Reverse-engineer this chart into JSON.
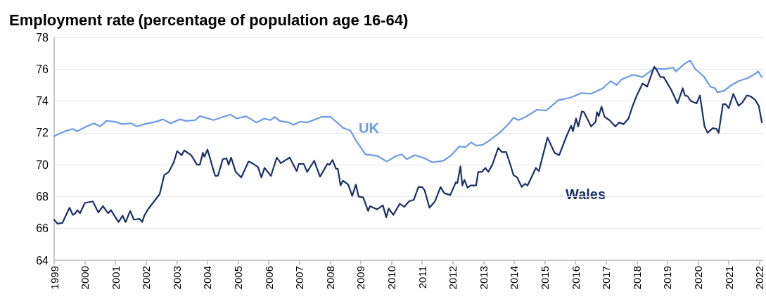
{
  "chart_data": {
    "type": "line",
    "title": "Employment rate",
    "subtitle": "(percentage of population age 16-64)",
    "xlim": [
      1999,
      2022.1
    ],
    "xticks": [
      1999,
      2000,
      2001,
      2002,
      2003,
      2004,
      2005,
      2006,
      2007,
      2008,
      2009,
      2010,
      2011,
      2012,
      2013,
      2014,
      2015,
      2016,
      2017,
      2018,
      2019,
      2020,
      2021,
      2022
    ],
    "ylim": [
      64,
      78
    ],
    "yticks": [
      64,
      66,
      68,
      70,
      72,
      74,
      76,
      78
    ],
    "grid": "y",
    "legend": false,
    "marker": "none",
    "line_style": "solid",
    "series": [
      {
        "name": "UK",
        "color": "#6a9be8",
        "x": [
          1999.0,
          1999.35,
          1999.6,
          1999.75,
          2000.05,
          2000.3,
          2000.5,
          2000.7,
          2001.0,
          2001.2,
          2001.5,
          2001.7,
          2001.95,
          2002.2,
          2002.4,
          2002.55,
          2002.8,
          2003.1,
          2003.3,
          2003.6,
          2003.75,
          2004.2,
          2004.5,
          2004.75,
          2004.95,
          2005.25,
          2005.6,
          2005.85,
          2006.05,
          2006.2,
          2006.35,
          2006.65,
          2006.8,
          2007.02,
          2007.25,
          2007.72,
          2008.02,
          2008.43,
          2008.66,
          2008.85,
          2009.15,
          2009.54,
          2009.85,
          2010.15,
          2010.34,
          2010.5,
          2010.77,
          2011.08,
          2011.34,
          2011.69,
          2011.92,
          2012.22,
          2012.41,
          2012.6,
          2012.76,
          2012.98,
          2013.21,
          2013.52,
          2013.79,
          2013.98,
          2014.14,
          2014.37,
          2014.75,
          2015.05,
          2015.44,
          2015.82,
          2016.2,
          2016.51,
          2016.89,
          2017.15,
          2017.34,
          2017.5,
          2017.88,
          2018.19,
          2018.57,
          2018.88,
          2019.19,
          2019.27,
          2019.57,
          2019.74,
          2019.91,
          2020.18,
          2020.4,
          2020.56,
          2020.63,
          2020.86,
          2021.05,
          2021.32,
          2021.63,
          2021.81,
          2021.96,
          2022.08
        ],
        "values": [
          71.8,
          72.1,
          72.25,
          72.1,
          72.4,
          72.6,
          72.4,
          72.75,
          72.7,
          72.55,
          72.6,
          72.4,
          72.55,
          72.65,
          72.75,
          72.85,
          72.6,
          72.85,
          72.75,
          72.8,
          73.05,
          72.8,
          73.0,
          73.15,
          72.9,
          73.05,
          72.65,
          72.9,
          72.8,
          73.0,
          72.75,
          72.65,
          72.5,
          72.7,
          72.65,
          73.0,
          73.0,
          72.3,
          72.15,
          71.5,
          70.65,
          70.55,
          70.2,
          70.55,
          70.65,
          70.35,
          70.6,
          70.4,
          70.15,
          70.25,
          70.55,
          71.15,
          71.1,
          71.4,
          71.2,
          71.25,
          71.55,
          72.0,
          72.5,
          72.95,
          72.8,
          73.0,
          73.45,
          73.4,
          74.05,
          74.2,
          74.5,
          74.45,
          74.8,
          75.25,
          75.0,
          75.35,
          75.65,
          75.5,
          76.05,
          76.0,
          76.1,
          75.85,
          76.35,
          76.55,
          76.0,
          75.55,
          74.9,
          74.8,
          74.55,
          74.65,
          74.95,
          75.25,
          75.45,
          75.65,
          75.85,
          75.5
        ]
      },
      {
        "name": "Wales",
        "color": "#1a2f66",
        "x": [
          1999.0,
          1999.11,
          1999.27,
          1999.5,
          1999.61,
          1999.69,
          1999.76,
          1999.84,
          2000.0,
          2000.26,
          2000.44,
          2000.59,
          2000.76,
          2000.85,
          2001.1,
          2001.23,
          2001.33,
          2001.48,
          2001.6,
          2001.79,
          2001.87,
          2001.94,
          2002.06,
          2002.44,
          2002.59,
          2002.74,
          2002.9,
          2003.01,
          2003.16,
          2003.24,
          2003.47,
          2003.66,
          2003.75,
          2003.85,
          2003.9,
          2004.0,
          2004.25,
          2004.34,
          2004.5,
          2004.62,
          2004.69,
          2004.77,
          2004.92,
          2005.1,
          2005.34,
          2005.46,
          2005.65,
          2005.76,
          2005.86,
          2006.07,
          2006.26,
          2006.39,
          2006.68,
          2006.91,
          2006.98,
          2007.14,
          2007.25,
          2007.48,
          2007.67,
          2007.91,
          2007.98,
          2008.08,
          2008.19,
          2008.25,
          2008.34,
          2008.42,
          2008.59,
          2008.72,
          2008.84,
          2008.93,
          2009.08,
          2009.24,
          2009.3,
          2009.53,
          2009.72,
          2009.83,
          2009.91,
          2010.06,
          2010.27,
          2010.42,
          2010.57,
          2010.73,
          2010.88,
          2011.0,
          2011.08,
          2011.24,
          2011.42,
          2011.6,
          2011.73,
          2011.92,
          2012.1,
          2012.15,
          2012.25,
          2012.31,
          2012.38,
          2012.48,
          2012.58,
          2012.76,
          2012.83,
          2012.95,
          2013.06,
          2013.16,
          2013.29,
          2013.48,
          2013.6,
          2013.74,
          2013.87,
          2013.98,
          2014.1,
          2014.25,
          2014.35,
          2014.44,
          2014.71,
          2014.81,
          2014.94,
          2015.09,
          2015.32,
          2015.47,
          2015.7,
          2015.86,
          2015.92,
          2016.02,
          2016.09,
          2016.21,
          2016.28,
          2016.51,
          2016.66,
          2016.7,
          2016.76,
          2016.85,
          2016.95,
          2017.11,
          2017.3,
          2017.42,
          2017.57,
          2017.73,
          2017.85,
          2018.0,
          2018.19,
          2018.34,
          2018.57,
          2018.65,
          2018.77,
          2018.88,
          2019.11,
          2019.33,
          2019.5,
          2019.57,
          2019.66,
          2019.76,
          2019.95,
          2020.06,
          2020.21,
          2020.31,
          2020.48,
          2020.6,
          2020.67,
          2020.81,
          2020.9,
          2021.0,
          2021.15,
          2021.32,
          2021.44,
          2021.59,
          2021.7,
          2021.85,
          2021.98,
          2022.08
        ],
        "values": [
          66.55,
          66.3,
          66.35,
          67.3,
          66.85,
          66.95,
          67.15,
          66.95,
          67.6,
          67.7,
          67.0,
          67.4,
          66.95,
          67.15,
          66.4,
          66.8,
          66.4,
          67.1,
          66.55,
          66.6,
          66.4,
          66.8,
          67.2,
          68.15,
          69.35,
          69.55,
          70.15,
          70.85,
          70.6,
          70.9,
          70.6,
          70.0,
          70.0,
          70.75,
          70.5,
          70.95,
          69.3,
          69.3,
          70.35,
          70.4,
          70.0,
          70.45,
          69.55,
          69.2,
          70.2,
          70.1,
          69.85,
          69.2,
          69.8,
          69.3,
          70.45,
          70.1,
          70.45,
          69.6,
          70.05,
          70.05,
          69.55,
          70.25,
          69.25,
          70.05,
          70.0,
          70.3,
          69.75,
          69.75,
          68.7,
          69.0,
          68.75,
          68.05,
          68.75,
          68.0,
          67.95,
          67.1,
          67.4,
          67.2,
          67.45,
          66.7,
          67.25,
          66.85,
          67.55,
          67.35,
          67.7,
          67.8,
          68.6,
          68.6,
          68.4,
          67.3,
          67.7,
          68.6,
          68.2,
          68.1,
          68.9,
          68.85,
          69.9,
          68.7,
          69.05,
          68.55,
          68.7,
          68.7,
          69.55,
          69.55,
          69.8,
          69.55,
          70.0,
          71.05,
          70.8,
          70.8,
          70.05,
          69.35,
          69.2,
          68.6,
          68.8,
          68.7,
          69.8,
          69.6,
          70.6,
          71.7,
          70.75,
          70.6,
          71.75,
          72.45,
          72.1,
          72.9,
          72.4,
          73.35,
          73.3,
          72.4,
          72.7,
          73.3,
          73.05,
          73.65,
          73.0,
          72.8,
          72.4,
          72.65,
          72.55,
          72.9,
          73.6,
          74.35,
          75.1,
          74.9,
          76.15,
          75.95,
          75.5,
          75.5,
          74.75,
          73.85,
          74.8,
          74.35,
          74.3,
          74.0,
          73.85,
          74.35,
          72.4,
          72.0,
          72.3,
          72.25,
          72.0,
          73.8,
          73.8,
          73.55,
          74.45,
          73.7,
          73.9,
          74.35,
          74.3,
          74.1,
          73.7,
          72.65
        ]
      }
    ]
  }
}
